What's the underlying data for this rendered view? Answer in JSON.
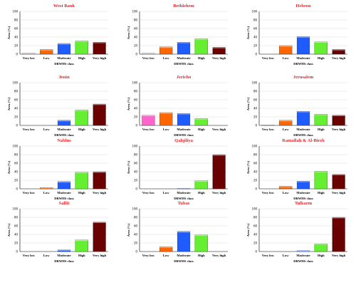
{
  "chart_data": [
    {
      "type": "bar",
      "title": "West Bank",
      "categories": [
        "Very low",
        "Low",
        "Moderate",
        "High",
        "Very high"
      ],
      "values": [
        2,
        11,
        25,
        31,
        28
      ],
      "xlabel": "DRWHS  class",
      "ylabel": "Area (%)",
      "ylim": [
        0,
        100
      ],
      "yticks": [
        0,
        20,
        40,
        60,
        80,
        100
      ],
      "grid": true
    },
    {
      "type": "bar",
      "title": "Bethlehem",
      "categories": [
        "Very low",
        "Low",
        "Moderate",
        "High",
        "Very high"
      ],
      "values": [
        2,
        17,
        28,
        36,
        16
      ],
      "xlabel": "DRWHS  class",
      "ylabel": "Area (%)",
      "ylim": [
        0,
        100
      ],
      "yticks": [
        0,
        20,
        40,
        60,
        80,
        100
      ],
      "grid": true
    },
    {
      "type": "bar",
      "title": "Hebron",
      "categories": [
        "Very low",
        "Low",
        "Moderate",
        "High",
        "Very high"
      ],
      "values": [
        0,
        20,
        41,
        29,
        11
      ],
      "xlabel": "DRWHS  class",
      "ylabel": "Area (%)",
      "ylim": [
        0,
        100
      ],
      "yticks": [
        0,
        20,
        40,
        60,
        80,
        100
      ],
      "grid": true
    },
    {
      "type": "bar",
      "title": "Jenin",
      "categories": [
        "Very low",
        "Low",
        "Moderate",
        "High",
        "Very high"
      ],
      "values": [
        0,
        0,
        12,
        36,
        50
      ],
      "xlabel": "DRWHS  class",
      "ylabel": "Area (%)",
      "ylim": [
        0,
        100
      ],
      "yticks": [
        0,
        20,
        40,
        60,
        80,
        100
      ],
      "grid": true
    },
    {
      "type": "bar",
      "title": "Jericho",
      "categories": [
        "Very low",
        "Low",
        "Moderate",
        "High",
        "Very high"
      ],
      "values": [
        24,
        30,
        28,
        16,
        0
      ],
      "xlabel": "DRWHS  class",
      "ylabel": "Area (%)",
      "ylim": [
        0,
        100
      ],
      "yticks": [
        0,
        20,
        40,
        60,
        80,
        100
      ],
      "grid": true
    },
    {
      "type": "bar",
      "title": "Jerusalem",
      "categories": [
        "Very low",
        "Low",
        "Moderate",
        "High",
        "Very high"
      ],
      "values": [
        1,
        12,
        33,
        26,
        24
      ],
      "xlabel": "DRWHS  class",
      "ylabel": "Area (%)",
      "ylim": [
        0,
        100
      ],
      "yticks": [
        0,
        20,
        40,
        60,
        80,
        100
      ],
      "grid": true
    },
    {
      "type": "bar",
      "title": "Nablus",
      "categories": [
        "Very low",
        "Low",
        "Moderate",
        "High",
        "Very high"
      ],
      "values": [
        0,
        3,
        17,
        39,
        40
      ],
      "xlabel": "DRWHS  class",
      "ylabel": "Area (%)",
      "ylim": [
        0,
        100
      ],
      "yticks": [
        0,
        20,
        40,
        60,
        80,
        100
      ],
      "grid": true
    },
    {
      "type": "bar",
      "title": "Qalqiliya",
      "categories": [
        "Very low",
        "Low",
        "Moderate",
        "High",
        "Very high"
      ],
      "values": [
        0,
        0,
        1,
        19,
        80
      ],
      "xlabel": "DRWHS  class",
      "ylabel": "Area (%)",
      "ylim": [
        0,
        100
      ],
      "yticks": [
        0,
        20,
        40,
        60,
        80,
        100
      ],
      "grid": true
    },
    {
      "type": "bar",
      "title": "Ramallah & Al-Bireh",
      "categories": [
        "Very low",
        "Low",
        "Moderate",
        "High",
        "Very high"
      ],
      "values": [
        0,
        6,
        18,
        41,
        34
      ],
      "xlabel": "DRWHS  class",
      "ylabel": "Area (%)",
      "ylim": [
        0,
        100
      ],
      "yticks": [
        0,
        20,
        40,
        60,
        80,
        100
      ],
      "grid": true
    },
    {
      "type": "bar",
      "title": "Salfit",
      "categories": [
        "Very low",
        "Low",
        "Moderate",
        "High",
        "Very high"
      ],
      "values": [
        0,
        0,
        4,
        27,
        69
      ],
      "xlabel": "DRWHS  class",
      "ylabel": "Area (%)",
      "ylim": [
        0,
        100
      ],
      "yticks": [
        0,
        20,
        40,
        60,
        80,
        100
      ],
      "grid": true
    },
    {
      "type": "bar",
      "title": "Tubas",
      "categories": [
        "Very low",
        "Low",
        "Moderate",
        "High",
        "Very high"
      ],
      "values": [
        0,
        11,
        47,
        39,
        0
      ],
      "xlabel": "DRWHS  class",
      "ylabel": "Area (%)",
      "ylim": [
        0,
        100
      ],
      "yticks": [
        0,
        20,
        40,
        60,
        80,
        100
      ],
      "grid": true
    },
    {
      "type": "bar",
      "title": "Tulkarm",
      "categories": [
        "Very low",
        "Low",
        "Moderate",
        "High",
        "Very high"
      ],
      "values": [
        0,
        0,
        2,
        18,
        80
      ],
      "xlabel": "DRWHS  class",
      "ylabel": "Area (%)",
      "ylim": [
        0,
        100
      ],
      "yticks": [
        0,
        20,
        40,
        60,
        80,
        100
      ],
      "grid": true
    }
  ],
  "category_colors": [
    "#ff66cc",
    "#ff6600",
    "#1f5cff",
    "#66ee33",
    "#6b0000"
  ]
}
